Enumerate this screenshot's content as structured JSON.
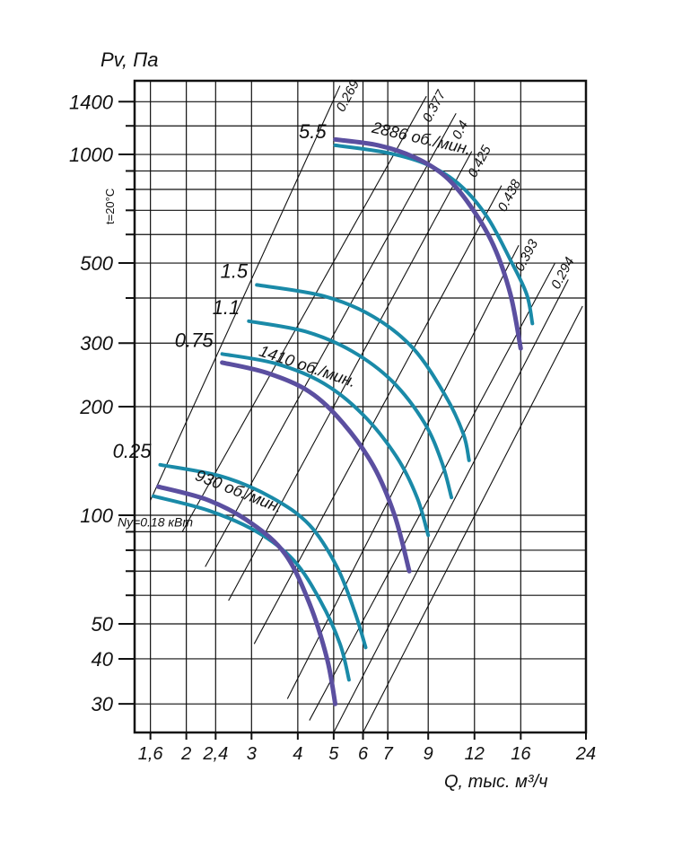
{
  "chart_data": {
    "type": "line",
    "title": "",
    "xlabel": "Q, тыс. м³/ч",
    "ylabel": "Pv, Па",
    "side_label": "t=20°C",
    "x_scale": "log",
    "y_scale": "log",
    "xlim": [
      1.45,
      24
    ],
    "ylim": [
      25,
      1600
    ],
    "grid": true,
    "x_ticks": [
      1.6,
      2,
      2.4,
      3,
      4,
      5,
      6,
      7,
      9,
      12,
      16,
      24
    ],
    "x_tick_labels": [
      "1,6",
      "2",
      "2,4",
      "3",
      "4",
      "5",
      "6",
      "7",
      "9",
      "12",
      "16",
      "24"
    ],
    "y_ticks": [
      30,
      40,
      50,
      100,
      200,
      300,
      500,
      1000,
      1400
    ],
    "y_tick_labels": [
      "30",
      "40",
      "50",
      "100",
      "200",
      "300",
      "500",
      "1000",
      "1400"
    ],
    "y_minor_ticks": [
      60,
      70,
      80,
      90,
      400,
      600,
      700,
      800,
      900,
      1200
    ],
    "efficiency_lines": {
      "labels": [
        "0.269",
        "0.377",
        "0.4",
        "0.425",
        "0.438",
        "0.393",
        "0.294"
      ],
      "lines": [
        {
          "from": [
            1.6,
            110
          ],
          "to": [
            5.2,
            1550
          ]
        },
        {
          "from": [
            1.95,
            90
          ],
          "to": [
            8.9,
            1450
          ]
        },
        {
          "from": [
            2.25,
            72
          ],
          "to": [
            10.7,
            1300
          ]
        },
        {
          "from": [
            2.6,
            58
          ],
          "to": [
            11.8,
            1020
          ]
        },
        {
          "from": [
            3.05,
            44
          ],
          "to": [
            14.2,
            820
          ]
        },
        {
          "from": [
            3.75,
            31
          ],
          "to": [
            15.8,
            560
          ]
        },
        {
          "from": [
            4.3,
            27
          ],
          "to": [
            19.8,
            500
          ]
        },
        {
          "from": [
            5.0,
            25
          ],
          "to": [
            21.5,
            450
          ]
        },
        {
          "from": [
            6.0,
            25
          ],
          "to": [
            23.5,
            380
          ]
        }
      ]
    },
    "series": [
      {
        "name": "2886 об./мин.",
        "color": "#5b4fa0",
        "group": "speed",
        "x": [
          5.05,
          6.6,
          8.3,
          10.0,
          11.7,
          13.5,
          15.0,
          16.0
        ],
        "y": [
          1100,
          1060,
          980,
          870,
          720,
          560,
          410,
          290
        ]
      },
      {
        "name": "5.5",
        "color": "#1a8aa8",
        "group": "power",
        "x": [
          5.05,
          7.0,
          9.0,
          11.0,
          13.0,
          15.0,
          16.6,
          17.2
        ],
        "y": [
          1060,
          1010,
          935,
          820,
          670,
          510,
          410,
          340
        ]
      },
      {
        "name": "1410 об./мин.",
        "color": "#5b4fa0",
        "group": "speed",
        "x": [
          2.5,
          3.3,
          4.3,
          5.3,
          6.4,
          7.3,
          8.0
        ],
        "y": [
          265,
          248,
          220,
          180,
          137,
          100,
          70
        ]
      },
      {
        "name": "0.75",
        "color": "#1a8aa8",
        "group": "power",
        "x": [
          2.5,
          3.5,
          4.7,
          6.0,
          7.4,
          8.4,
          9.0
        ],
        "y": [
          280,
          263,
          232,
          190,
          145,
          112,
          88
        ]
      },
      {
        "name": "1.1",
        "color": "#1a8aa8",
        "group": "power",
        "x": [
          2.95,
          4.2,
          5.6,
          7.2,
          8.8,
          9.8,
          10.4
        ],
        "y": [
          345,
          323,
          285,
          235,
          180,
          140,
          112
        ]
      },
      {
        "name": "1.5",
        "color": "#1a8aa8",
        "group": "power",
        "x": [
          3.1,
          4.7,
          6.4,
          8.2,
          10.0,
          11.2,
          11.6
        ],
        "y": [
          435,
          405,
          355,
          290,
          215,
          168,
          142
        ]
      },
      {
        "name": "930 об./мин.",
        "color": "#5b4fa0",
        "group": "speed",
        "x": [
          1.68,
          2.3,
          3.0,
          3.7,
          4.3,
          4.8,
          5.05
        ],
        "y": [
          120,
          110,
          95,
          78,
          57,
          40,
          30
        ]
      },
      {
        "name": "Ny=0.18 кВт",
        "color": "#1a8aa8",
        "group": "power",
        "x": [
          1.63,
          2.3,
          3.1,
          3.9,
          4.6,
          5.2,
          5.5
        ],
        "y": [
          113,
          103,
          90,
          75,
          58,
          44,
          35
        ]
      },
      {
        "name": "0.25",
        "color": "#1a8aa8",
        "group": "power",
        "x": [
          1.7,
          2.5,
          3.4,
          4.3,
          5.1,
          5.7,
          6.1
        ],
        "y": [
          138,
          128,
          112,
          94,
          72,
          54,
          43
        ]
      }
    ]
  }
}
